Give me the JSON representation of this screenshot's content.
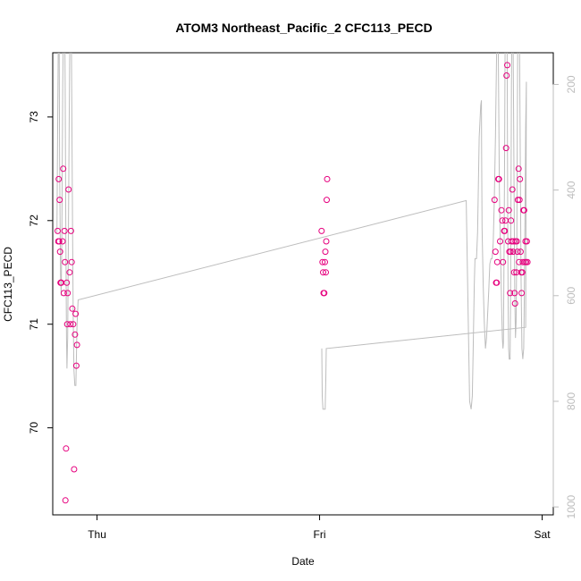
{
  "chart_data": {
    "type": "scatter",
    "title": "ATOM3 Northeast_Pacific_2 CFC113_PECD",
    "xlabel": "Date",
    "ylabel": "CFC113_PECD",
    "x_ticks": [
      "Thu",
      "Fri",
      "Sat"
    ],
    "x_tick_values": [
      1,
      2,
      3
    ],
    "xlim": [
      0.801,
      3.05
    ],
    "ylim": [
      69.16,
      73.62
    ],
    "y_ticks": [
      70,
      71,
      72,
      73
    ],
    "y2_ticks": [
      200,
      400,
      600,
      800,
      1000
    ],
    "y2lim": [
      1015,
      140
    ],
    "y2_reversed": true,
    "point_color": "#e6007e",
    "line_color": "#bdbdbd",
    "grid": false,
    "legend": "none",
    "series": [
      {
        "kind": "points",
        "points": [
          [
            0.823,
            71.9
          ],
          [
            0.826,
            71.8
          ],
          [
            0.828,
            72.4
          ],
          [
            0.83,
            71.8
          ],
          [
            0.832,
            72.2
          ],
          [
            0.834,
            71.7
          ],
          [
            0.836,
            71.4
          ],
          [
            0.838,
            71.4
          ],
          [
            0.84,
            71.4
          ],
          [
            0.845,
            71.8
          ],
          [
            0.848,
            72.5
          ],
          [
            0.851,
            71.3
          ],
          [
            0.854,
            71.9
          ],
          [
            0.856,
            71.6
          ],
          [
            0.858,
            69.3
          ],
          [
            0.861,
            69.8
          ],
          [
            0.864,
            71.4
          ],
          [
            0.866,
            71.0
          ],
          [
            0.868,
            71.3
          ],
          [
            0.872,
            72.3
          ],
          [
            0.877,
            71.5
          ],
          [
            0.88,
            71.0
          ],
          [
            0.883,
            71.9
          ],
          [
            0.886,
            71.6
          ],
          [
            0.889,
            71.15
          ],
          [
            0.893,
            71.0
          ],
          [
            0.897,
            69.6
          ],
          [
            0.901,
            70.9
          ],
          [
            0.904,
            71.1
          ],
          [
            0.907,
            70.6
          ],
          [
            0.91,
            70.8
          ],
          [
            2.009,
            71.9
          ],
          [
            2.013,
            71.6
          ],
          [
            2.016,
            71.5
          ],
          [
            2.018,
            71.3
          ],
          [
            2.021,
            71.3
          ],
          [
            2.024,
            71.6
          ],
          [
            2.026,
            71.7
          ],
          [
            2.028,
            71.5
          ],
          [
            2.03,
            71.8
          ],
          [
            2.032,
            72.2
          ],
          [
            2.034,
            72.4
          ],
          [
            2.786,
            72.2
          ],
          [
            2.79,
            71.7
          ],
          [
            2.793,
            71.4
          ],
          [
            2.796,
            71.4
          ],
          [
            2.798,
            71.6
          ],
          [
            2.803,
            72.4
          ],
          [
            2.806,
            72.4
          ],
          [
            2.811,
            71.8
          ],
          [
            2.817,
            72.1
          ],
          [
            2.821,
            72.0
          ],
          [
            2.824,
            71.6
          ],
          [
            2.829,
            71.9
          ],
          [
            2.832,
            71.9
          ],
          [
            2.835,
            72.0
          ],
          [
            2.838,
            72.7
          ],
          [
            2.84,
            73.4
          ],
          [
            2.843,
            73.5
          ],
          [
            2.847,
            71.8
          ],
          [
            2.85,
            72.1
          ],
          [
            2.853,
            71.7
          ],
          [
            2.856,
            71.3
          ],
          [
            2.858,
            71.7
          ],
          [
            2.86,
            72.0
          ],
          [
            2.863,
            71.8
          ],
          [
            2.866,
            72.3
          ],
          [
            2.869,
            71.7
          ],
          [
            2.871,
            71.8
          ],
          [
            2.874,
            71.5
          ],
          [
            2.876,
            71.3
          ],
          [
            2.878,
            71.2
          ],
          [
            2.88,
            71.8
          ],
          [
            2.884,
            71.5
          ],
          [
            2.886,
            71.8
          ],
          [
            2.889,
            71.7
          ],
          [
            2.891,
            72.2
          ],
          [
            2.894,
            72.5
          ],
          [
            2.896,
            71.6
          ],
          [
            2.898,
            72.2
          ],
          [
            2.9,
            72.4
          ],
          [
            2.903,
            71.7
          ],
          [
            2.906,
            71.5
          ],
          [
            2.908,
            71.3
          ],
          [
            2.911,
            71.5
          ],
          [
            2.913,
            71.6
          ],
          [
            2.916,
            72.1
          ],
          [
            2.919,
            72.1
          ],
          [
            2.922,
            71.6
          ],
          [
            2.925,
            71.8
          ],
          [
            2.928,
            71.6
          ],
          [
            2.931,
            71.8
          ],
          [
            2.934,
            71.6
          ]
        ]
      },
      {
        "kind": "line",
        "axis": "y2",
        "points": [
          [
            0.82,
            480
          ],
          [
            0.823,
            280
          ],
          [
            0.826,
            120
          ],
          [
            0.829,
            40
          ],
          [
            0.832,
            350
          ],
          [
            0.836,
            560
          ],
          [
            0.839,
            600
          ],
          [
            0.842,
            480
          ],
          [
            0.846,
            200
          ],
          [
            0.85,
            60
          ],
          [
            0.854,
            30
          ],
          [
            0.857,
            200
          ],
          [
            0.86,
            500
          ],
          [
            0.863,
            680
          ],
          [
            0.865,
            738
          ],
          [
            0.868,
            680
          ],
          [
            0.871,
            520
          ],
          [
            0.874,
            320
          ],
          [
            0.877,
            160
          ],
          [
            0.88,
            60
          ],
          [
            0.884,
            80
          ],
          [
            0.887,
            260
          ],
          [
            0.89,
            480
          ],
          [
            0.893,
            640
          ],
          [
            0.896,
            740
          ],
          [
            0.9,
            770
          ],
          [
            0.905,
            770
          ],
          [
            0.91,
            660
          ],
          [
            0.915,
            608
          ],
          [
            2.659,
            420
          ],
          [
            2.668,
            650
          ],
          [
            2.674,
            800
          ],
          [
            2.681,
            815
          ],
          [
            2.686,
            790
          ],
          [
            2.69,
            700
          ],
          [
            2.695,
            580
          ],
          [
            2.698,
            530
          ],
          [
            2.705,
            530
          ],
          [
            2.71,
            480
          ],
          [
            2.717,
            300
          ],
          [
            2.724,
            240
          ],
          [
            2.727,
            230
          ],
          [
            2.728,
            320
          ],
          [
            2.73,
            470
          ],
          [
            2.735,
            580
          ],
          [
            2.74,
            650
          ],
          [
            2.745,
            700
          ],
          [
            2.75,
            680
          ],
          [
            2.76,
            590
          ],
          [
            2.765,
            540
          ],
          [
            2.77,
            530
          ],
          [
            2.775,
            530
          ],
          [
            2.78,
            500
          ],
          [
            2.785,
            420
          ],
          [
            2.79,
            300
          ],
          [
            2.795,
            150
          ],
          [
            2.798,
            50
          ],
          [
            2.8,
            0
          ],
          [
            2.802,
            80
          ],
          [
            2.805,
            250
          ],
          [
            2.808,
            400
          ],
          [
            2.812,
            500
          ],
          [
            2.815,
            560
          ],
          [
            2.818,
            620
          ],
          [
            2.821,
            680
          ],
          [
            2.824,
            700
          ],
          [
            2.826,
            690
          ],
          [
            2.829,
            500
          ],
          [
            2.832,
            280
          ],
          [
            2.834,
            80
          ],
          [
            2.836,
            0
          ],
          [
            2.841,
            0
          ],
          [
            2.843,
            200
          ],
          [
            2.845,
            450
          ],
          [
            2.847,
            620
          ],
          [
            2.849,
            700
          ],
          [
            2.852,
            720
          ],
          [
            2.856,
            720
          ],
          [
            2.858,
            600
          ],
          [
            2.86,
            400
          ],
          [
            2.862,
            200
          ],
          [
            2.865,
            60
          ],
          [
            2.868,
            40
          ],
          [
            2.871,
            200
          ],
          [
            2.874,
            420
          ],
          [
            2.877,
            600
          ],
          [
            2.88,
            680
          ],
          [
            2.883,
            650
          ],
          [
            2.886,
            500
          ],
          [
            2.888,
            300
          ],
          [
            2.89,
            120
          ],
          [
            2.893,
            40
          ],
          [
            2.896,
            30
          ],
          [
            2.899,
            160
          ],
          [
            2.902,
            350
          ],
          [
            2.905,
            560
          ],
          [
            2.909,
            700
          ],
          [
            2.913,
            720
          ],
          [
            2.917,
            700
          ],
          [
            2.92,
            600
          ],
          [
            2.923,
            430
          ],
          [
            2.926,
            280
          ],
          [
            2.929,
            195
          ],
          [
            2.926,
            660
          ],
          [
            2.03,
            700
          ],
          [
            2.028,
            760
          ],
          [
            2.025,
            815
          ],
          [
            2.015,
            815
          ],
          [
            2.012,
            790
          ],
          [
            2.01,
            700
          ]
        ]
      }
    ]
  }
}
